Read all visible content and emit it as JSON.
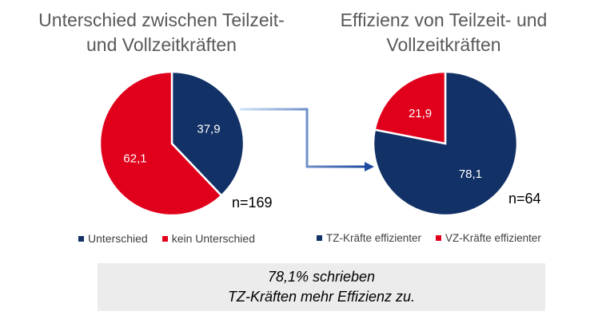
{
  "colors": {
    "navy": "#123166",
    "red": "#e0001b",
    "arrow_start": "#cfe2f7",
    "arrow_end": "#1e4aa0"
  },
  "chart_data": [
    {
      "type": "pie",
      "title": "Unterschied zwischen Teilzeit-\nund Vollzeitkräften",
      "slices": [
        {
          "label": "Unterschied",
          "value": 37.9,
          "display": "37,9",
          "color": "#123166"
        },
        {
          "label": "kein Unterschied",
          "value": 62.1,
          "display": "62,1",
          "color": "#e0001b"
        }
      ],
      "n_label": "n=169",
      "legend_position": "bottom"
    },
    {
      "type": "pie",
      "title": "Effizienz von Teilzeit- und\nVollzeitkräften",
      "slices": [
        {
          "label": "TZ-Kräfte effizienter",
          "value": 78.1,
          "display": "78,1",
          "color": "#123166"
        },
        {
          "label": "VZ-Kräfte effizienter",
          "value": 21.9,
          "display": "21,9",
          "color": "#e0001b"
        }
      ],
      "n_label": "n=64",
      "legend_position": "bottom"
    }
  ],
  "note": {
    "line1": "78,1% schrieben",
    "line2": "TZ-Kräften mehr Effizienz zu."
  }
}
